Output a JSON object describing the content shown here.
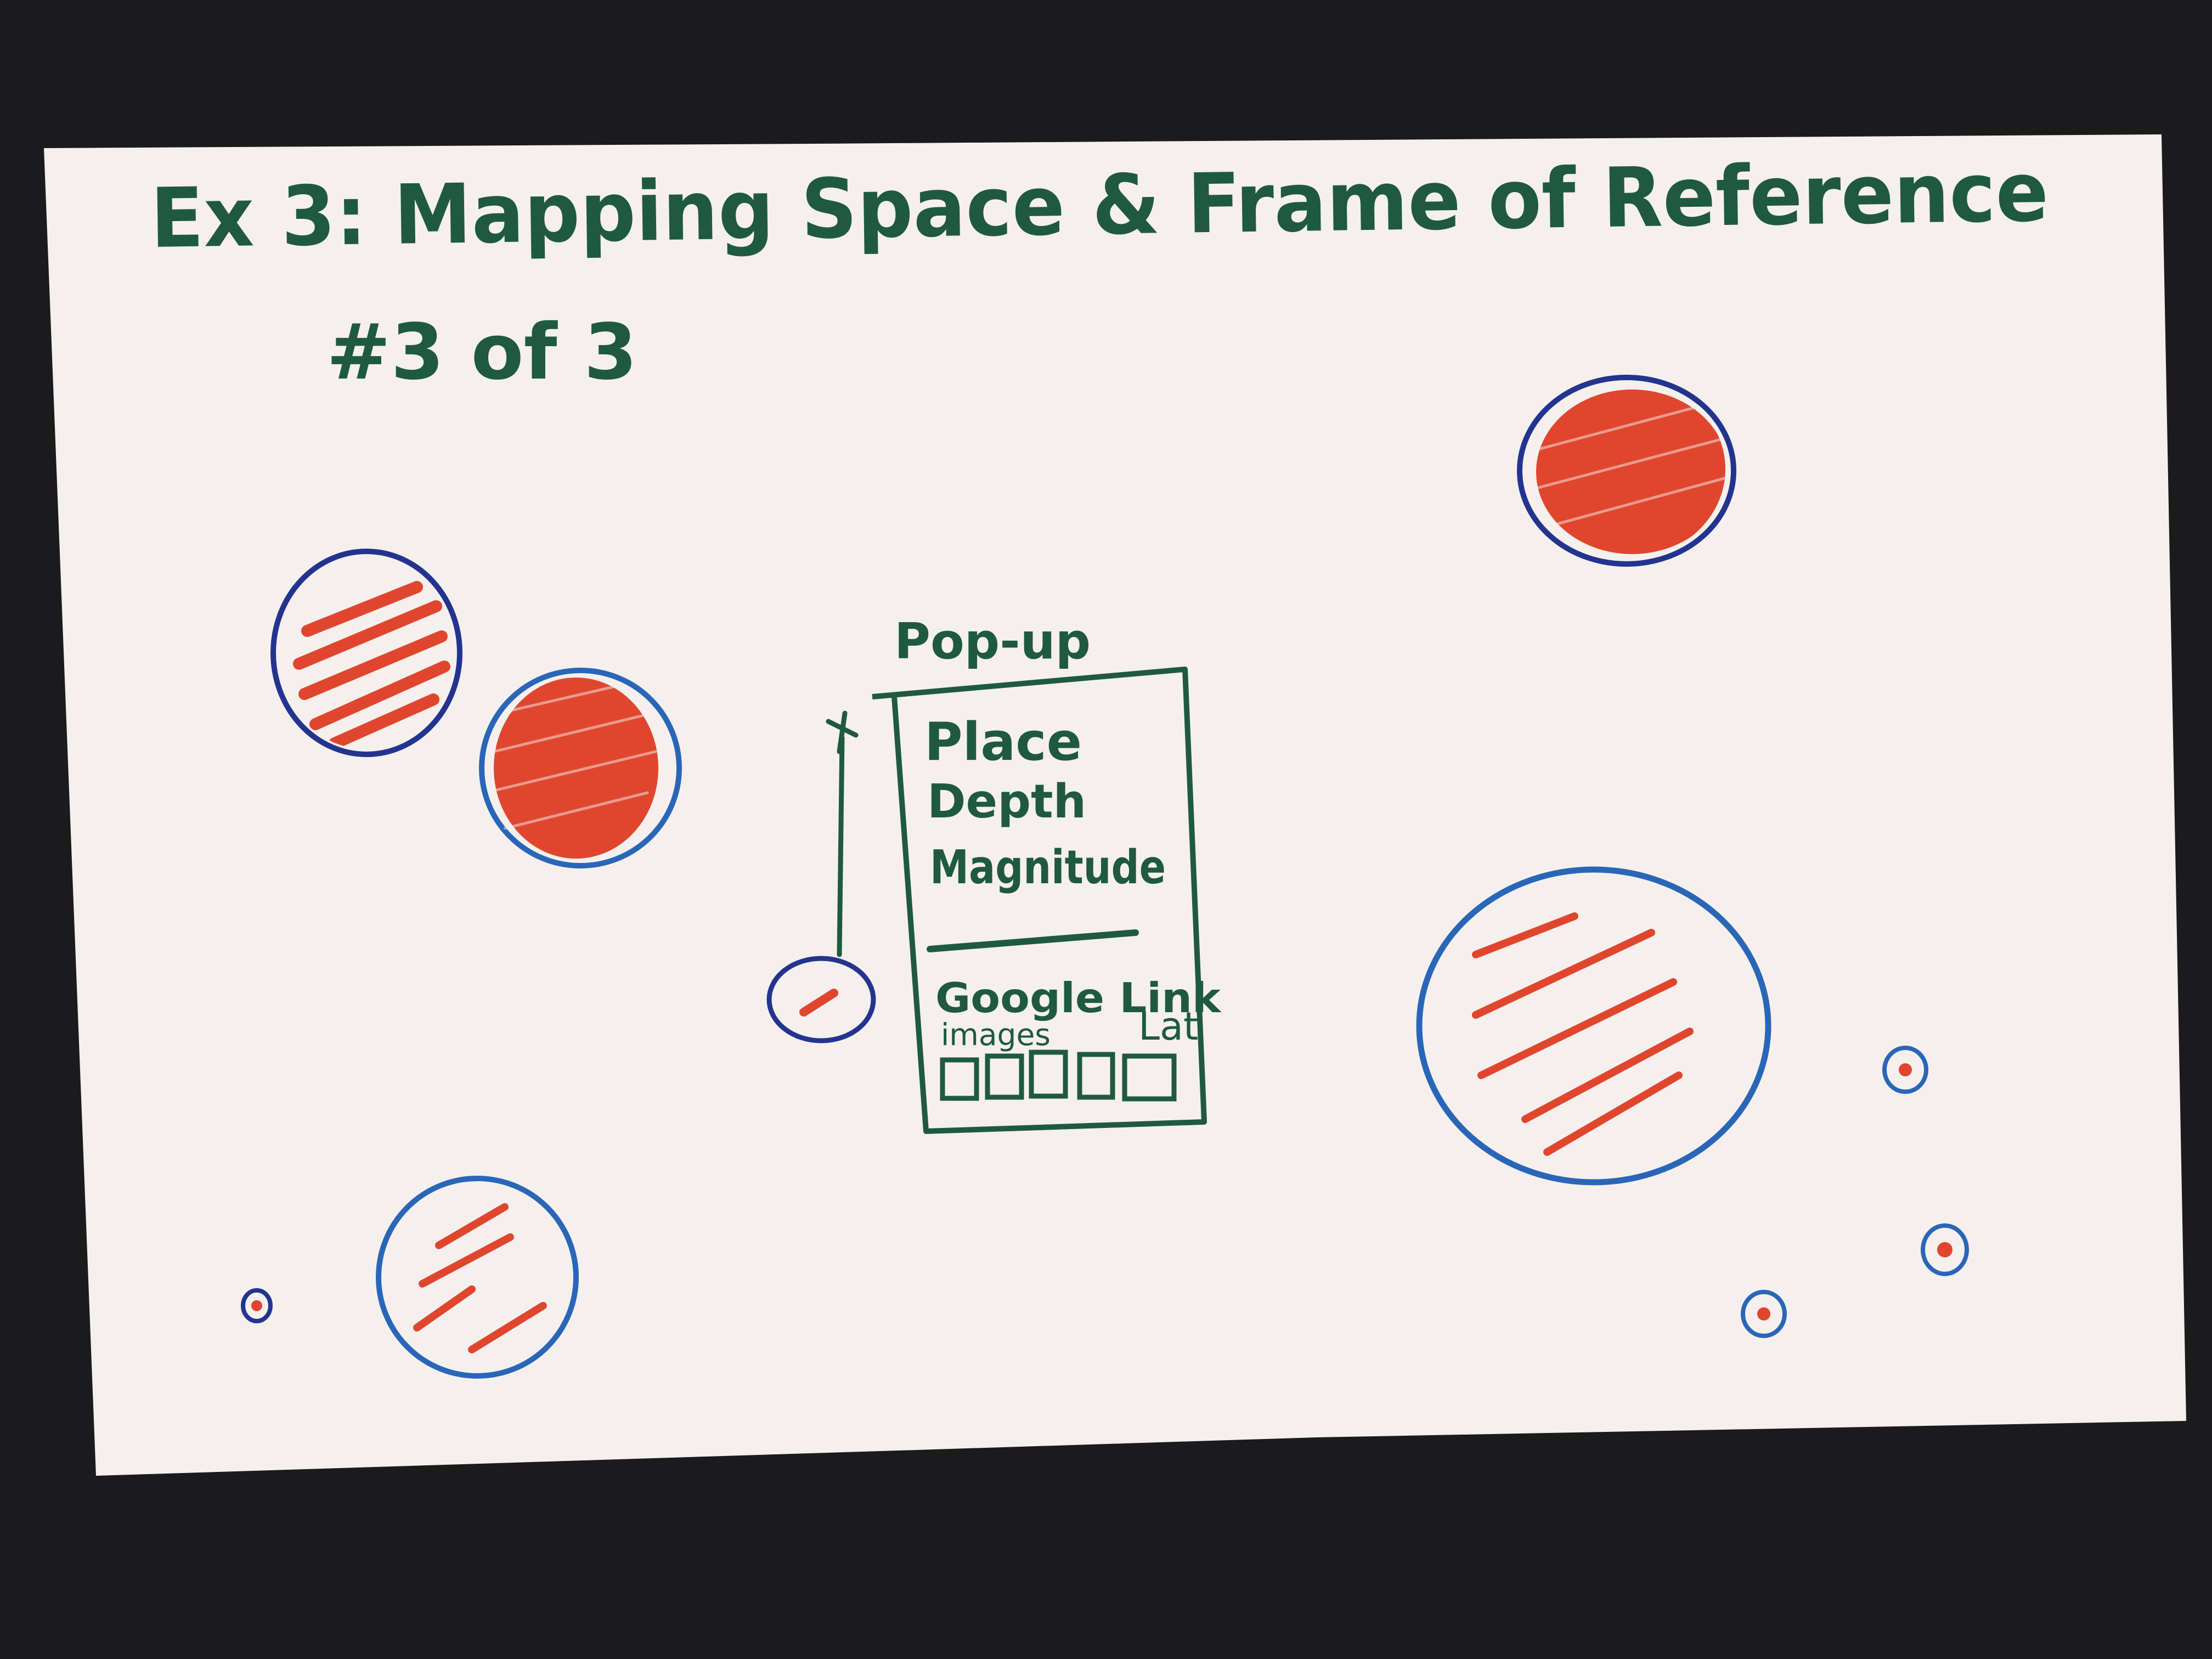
{
  "card": {
    "title": "Ex 3: Mapping Space & Frame of Reference",
    "subtitle": "#3 of 3"
  },
  "popup": {
    "heading": "Pop-up",
    "fields": [
      "Place",
      "Depth",
      "Magnitude"
    ],
    "link_label": "Google Link",
    "images_label": "images",
    "latlon_label": "Lat",
    "thumbnail_count": 5
  },
  "colors": {
    "ink_green": "#1f5a3e",
    "ink_blue": "#2a66b8",
    "ink_navy": "#23348f",
    "marker_red": "#e0462e",
    "card": "#f5f0ed",
    "background": "#1b1a1c"
  },
  "icons": {
    "event_marker": "circle-outline-with-red-fill",
    "popup_anchor": "leader-line-with-tick"
  }
}
